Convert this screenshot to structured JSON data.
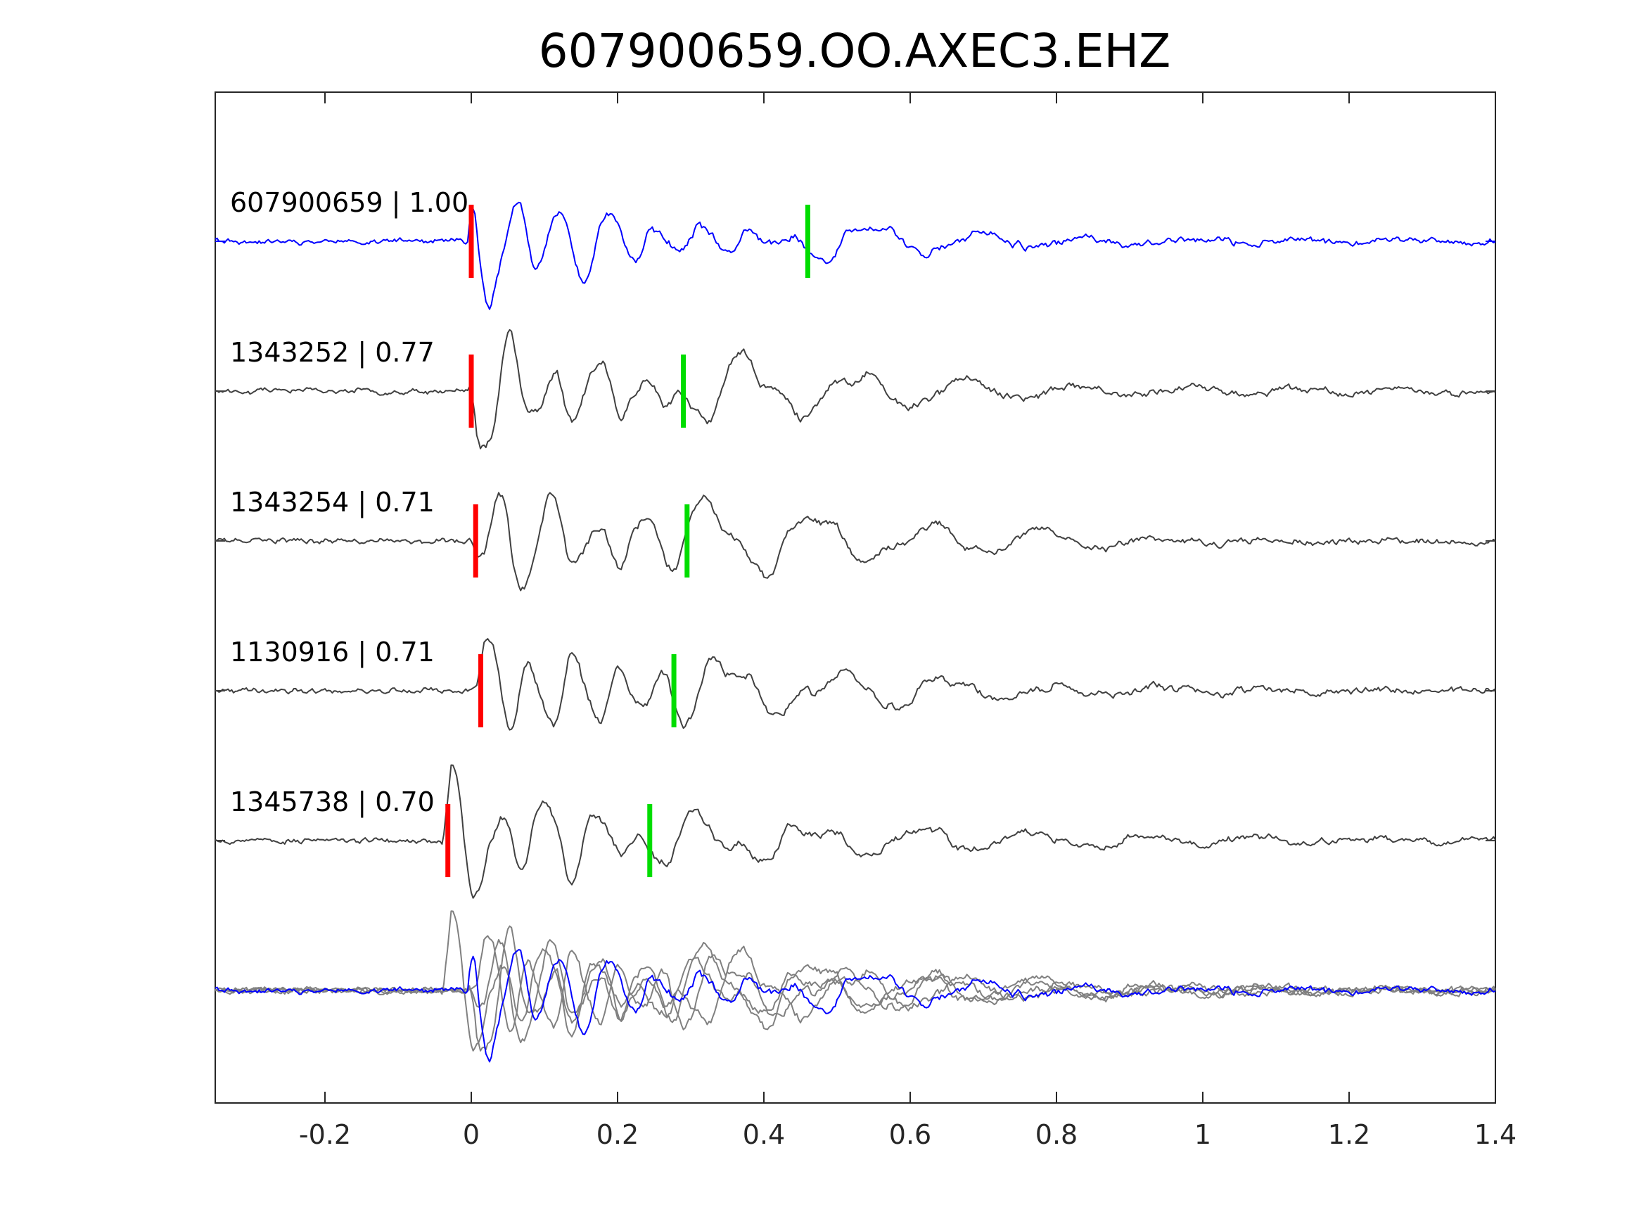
{
  "chart_data": {
    "type": "line",
    "title": "607900659.OO.AXEC3.EHZ",
    "xlabel": "",
    "ylabel": "",
    "xlim": [
      -0.35,
      1.4
    ],
    "xticks": [
      -0.2,
      0,
      0.2,
      0.4,
      0.6,
      0.8,
      1,
      1.2,
      1.4
    ],
    "xtick_labels": [
      "-0.2",
      "0",
      "0.2",
      "0.4",
      "0.6",
      "0.8",
      "1",
      "1.2",
      "1.4"
    ],
    "grid": false,
    "legend": "none",
    "colors": {
      "reference": "#0000ff",
      "match": "#404040",
      "overlay_match": "#808080",
      "p_pick": "#ff0000",
      "s_pick": "#00dd00",
      "axes": "#262626"
    },
    "traces": [
      {
        "name": "607900659",
        "cc": "1.00",
        "label": "607900659 | 1.00",
        "color": "#0000ff",
        "p_pick": 0.0,
        "s_pick": 0.46,
        "onset": -0.005,
        "seed": 11,
        "amp": 1.0,
        "freq": 15.5
      },
      {
        "name": "1343252",
        "cc": "0.77",
        "label": "1343252 | 0.77",
        "color": "#404040",
        "p_pick": 0.0,
        "s_pick": 0.29,
        "onset": -0.005,
        "seed": 23,
        "amp": 0.95,
        "freq": 16.0
      },
      {
        "name": "1343254",
        "cc": "0.71",
        "label": "1343254 | 0.71",
        "color": "#404040",
        "p_pick": 0.006,
        "s_pick": 0.295,
        "onset": 0.0,
        "seed": 37,
        "amp": 0.95,
        "freq": 15.0
      },
      {
        "name": "1130916",
        "cc": "0.71",
        "label": "1130916 | 0.71",
        "color": "#404040",
        "p_pick": 0.013,
        "s_pick": 0.277,
        "onset": 0.005,
        "seed": 41,
        "amp": 1.0,
        "freq": 16.5
      },
      {
        "name": "1345738",
        "cc": "0.70",
        "label": "1345738 | 0.70",
        "color": "#404040",
        "p_pick": -0.032,
        "s_pick": 0.244,
        "onset": -0.04,
        "seed": 53,
        "amp": 1.05,
        "freq": 15.0
      }
    ],
    "overlay": {
      "label": "",
      "members": [
        "1343252",
        "1343254",
        "1130916",
        "1345738",
        "607900659"
      ]
    }
  }
}
